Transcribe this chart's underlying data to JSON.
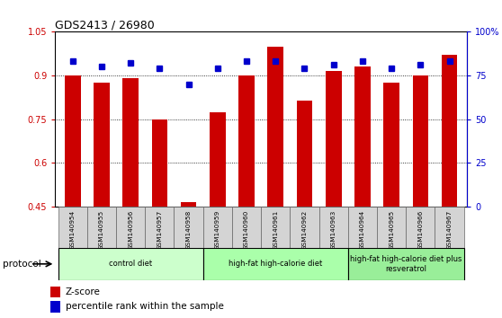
{
  "title": "GDS2413 / 26980",
  "samples": [
    "GSM140954",
    "GSM140955",
    "GSM140956",
    "GSM140957",
    "GSM140958",
    "GSM140959",
    "GSM140960",
    "GSM140961",
    "GSM140962",
    "GSM140963",
    "GSM140964",
    "GSM140965",
    "GSM140966",
    "GSM140967"
  ],
  "zscore": [
    0.9,
    0.875,
    0.89,
    0.75,
    0.465,
    0.775,
    0.9,
    1.0,
    0.815,
    0.915,
    0.93,
    0.875,
    0.9,
    0.97
  ],
  "percentile": [
    83,
    80,
    82,
    79,
    70,
    79,
    83,
    83,
    79,
    81,
    83,
    79,
    81,
    83
  ],
  "zscore_color": "#cc0000",
  "percentile_color": "#0000cc",
  "ylim_left": [
    0.45,
    1.05
  ],
  "ylim_right": [
    0,
    100
  ],
  "yticks_left": [
    0.45,
    0.6,
    0.75,
    0.9,
    1.05
  ],
  "yticks_right": [
    0,
    25,
    50,
    75,
    100
  ],
  "ytick_labels_right": [
    "0",
    "25",
    "50",
    "75",
    "100%"
  ],
  "gridlines": [
    0.6,
    0.75,
    0.9
  ],
  "groups": [
    {
      "label": "control diet",
      "start": 0,
      "end": 5,
      "color": "#ccffcc"
    },
    {
      "label": "high-fat high-calorie diet",
      "start": 5,
      "end": 10,
      "color": "#aaffaa"
    },
    {
      "label": "high-fat high-calorie diet plus\nresveratrol",
      "start": 10,
      "end": 14,
      "color": "#99ee99"
    }
  ],
  "protocol_label": "protocol",
  "legend_zscore": "Z-score",
  "legend_percentile": "percentile rank within the sample",
  "bar_width": 0.55,
  "background_color": "#ffffff"
}
